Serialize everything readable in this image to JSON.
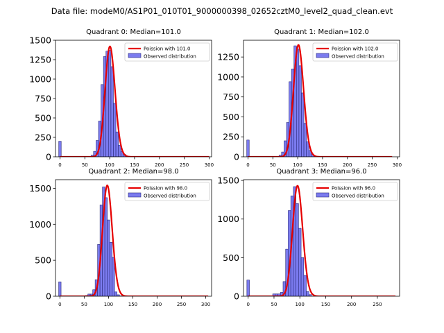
{
  "suptitle": "Data file: modeM0/AS1P01_010T01_9000000398_02652cztM0_level2_quad_clean.evt",
  "colors": {
    "bar_fill": "#7b7bef",
    "bar_edge": "#2a2a7a",
    "line": "#e60000"
  },
  "chart_data": [
    {
      "type": "bar",
      "title": "Quadrant 0: Median=101.0",
      "legend": [
        "Poission with 101.0",
        "Observed distribution"
      ],
      "legend_position": "top-right",
      "xlim": [
        -9,
        305
      ],
      "ylim": [
        0,
        1500
      ],
      "xticks": [
        0,
        50,
        100,
        150,
        200,
        250,
        300
      ],
      "yticks": [
        0,
        250,
        500,
        750,
        1000,
        1250,
        1500
      ],
      "bin_width": 5,
      "bars": [
        [
          0,
          200
        ],
        [
          60,
          5
        ],
        [
          65,
          20
        ],
        [
          70,
          70
        ],
        [
          75,
          210
        ],
        [
          80,
          460
        ],
        [
          85,
          930
        ],
        [
          90,
          1290
        ],
        [
          95,
          1360
        ],
        [
          100,
          1370
        ],
        [
          105,
          1160
        ],
        [
          110,
          690
        ],
        [
          115,
          320
        ],
        [
          120,
          150
        ],
        [
          125,
          70
        ],
        [
          130,
          30
        ],
        [
          135,
          10
        ]
      ],
      "poisson_mean": 101.0,
      "poisson_peak": 1420,
      "poisson_x": [
        0,
        300
      ]
    },
    {
      "type": "bar",
      "title": "Quadrant 1: Median=102.0",
      "legend": [
        "Poission with 102.0",
        "Observed distribution"
      ],
      "legend_position": "top-right",
      "xlim": [
        -9,
        305
      ],
      "ylim": [
        0,
        1460
      ],
      "xticks": [
        0,
        50,
        100,
        150,
        200,
        250,
        300
      ],
      "yticks": [
        0,
        250,
        500,
        750,
        1000,
        1250
      ],
      "bin_width": 5,
      "bars": [
        [
          0,
          210
        ],
        [
          60,
          5
        ],
        [
          65,
          20
        ],
        [
          70,
          60
        ],
        [
          75,
          200
        ],
        [
          80,
          430
        ],
        [
          85,
          940
        ],
        [
          90,
          1100
        ],
        [
          95,
          1390
        ],
        [
          100,
          1350
        ],
        [
          105,
          1140
        ],
        [
          110,
          800
        ],
        [
          115,
          420
        ],
        [
          120,
          190
        ],
        [
          125,
          80
        ],
        [
          130,
          30
        ],
        [
          135,
          10
        ]
      ],
      "poisson_mean": 102.0,
      "poisson_peak": 1400,
      "poisson_x": [
        0,
        290
      ]
    },
    {
      "type": "bar",
      "title": "Quadrant 2: Median=98.0",
      "legend": [
        "Poission with 98.0",
        "Observed distribution"
      ],
      "legend_position": "top-right",
      "xlim": [
        -9,
        312
      ],
      "ylim": [
        0,
        1620
      ],
      "xticks": [
        0,
        50,
        100,
        150,
        200,
        250,
        300
      ],
      "yticks": [
        0,
        500,
        1000,
        1500
      ],
      "bin_width": 5,
      "bars": [
        [
          0,
          200
        ],
        [
          55,
          10
        ],
        [
          60,
          30
        ],
        [
          65,
          30
        ],
        [
          70,
          90
        ],
        [
          75,
          230
        ],
        [
          80,
          720
        ],
        [
          85,
          1270
        ],
        [
          90,
          1520
        ],
        [
          95,
          1370
        ],
        [
          100,
          1060
        ],
        [
          105,
          750
        ],
        [
          110,
          540
        ],
        [
          115,
          60
        ],
        [
          120,
          20
        ],
        [
          125,
          5
        ]
      ],
      "poisson_mean": 98.0,
      "poisson_peak": 1540,
      "poisson_x": [
        0,
        305
      ]
    },
    {
      "type": "bar",
      "title": "Quadrant 3: Median=96.0",
      "legend": [
        "Poission with 96.0",
        "Observed distribution"
      ],
      "legend_position": "top-right",
      "xlim": [
        -9,
        293
      ],
      "ylim": [
        0,
        1510
      ],
      "xticks": [
        0,
        50,
        100,
        150,
        200,
        250
      ],
      "yticks": [
        0,
        500,
        1000,
        1500
      ],
      "bin_width": 5,
      "bars": [
        [
          0,
          210
        ],
        [
          50,
          30
        ],
        [
          55,
          30
        ],
        [
          60,
          30
        ],
        [
          65,
          50
        ],
        [
          70,
          190
        ],
        [
          75,
          610
        ],
        [
          80,
          1110
        ],
        [
          85,
          1300
        ],
        [
          90,
          1420
        ],
        [
          95,
          1200
        ],
        [
          100,
          880
        ],
        [
          105,
          500
        ],
        [
          110,
          270
        ],
        [
          115,
          60
        ],
        [
          120,
          20
        ]
      ],
      "poisson_mean": 96.0,
      "poisson_peak": 1430,
      "poisson_x": [
        0,
        285
      ]
    }
  ]
}
